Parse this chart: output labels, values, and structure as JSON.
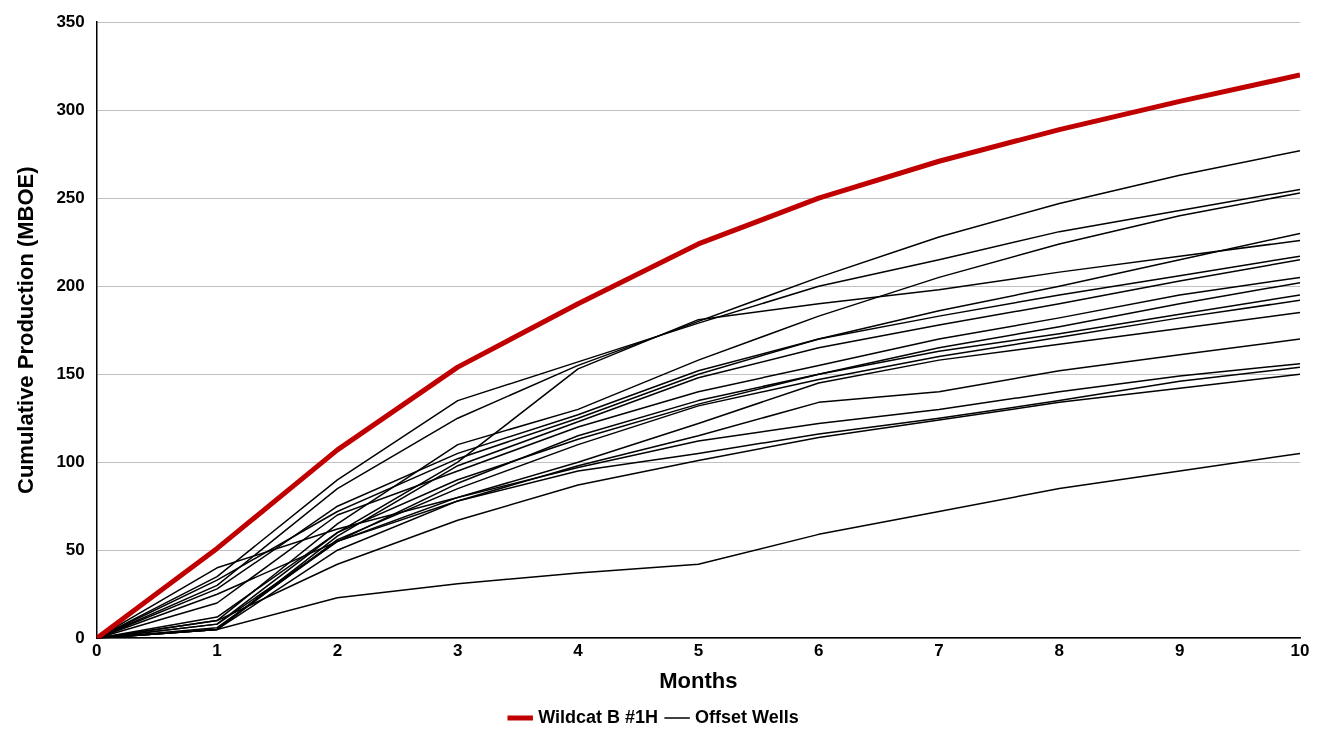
{
  "chart_data": {
    "type": "line",
    "xlabel": "Months",
    "ylabel": "Cumulative Production (MBOE)",
    "x": [
      0,
      1,
      2,
      3,
      4,
      5,
      6,
      7,
      8,
      9,
      10
    ],
    "xlim": [
      0,
      10
    ],
    "xticks": [
      0,
      1,
      2,
      3,
      4,
      5,
      6,
      7,
      8,
      9,
      10
    ],
    "ylim": [
      0,
      350
    ],
    "yticks": [
      0,
      50,
      100,
      150,
      200,
      250,
      300,
      350
    ],
    "grid": "y",
    "legend": "bottom",
    "marker": "none",
    "series": [
      {
        "name": "Wildcat B #1H",
        "color": "#c00000",
        "values": [
          0,
          51,
          107,
          154,
          190,
          224,
          250,
          271,
          289,
          305,
          320
        ]
      },
      {
        "name": "Offset Wells",
        "color": "#000000",
        "values": [
          0,
          30,
          85,
          125,
          155,
          180,
          205,
          228,
          247,
          263,
          277
        ]
      },
      {
        "color": "#000000",
        "values": [
          0,
          35,
          90,
          135,
          157,
          179,
          200,
          215,
          231,
          243,
          255
        ]
      },
      {
        "color": "#000000",
        "values": [
          0,
          10,
          65,
          110,
          130,
          158,
          183,
          205,
          224,
          240,
          253
        ]
      },
      {
        "color": "#000000",
        "values": [
          0,
          28,
          75,
          105,
          127,
          152,
          170,
          186,
          200,
          215,
          230
        ]
      },
      {
        "color": "#000000",
        "values": [
          0,
          8,
          60,
          100,
          153,
          181,
          190,
          198,
          208,
          217,
          226
        ]
      },
      {
        "color": "#000000",
        "values": [
          0,
          33,
          72,
          102,
          125,
          150,
          170,
          183,
          195,
          206,
          217
        ]
      },
      {
        "color": "#000000",
        "values": [
          0,
          5,
          58,
          98,
          123,
          148,
          165,
          178,
          190,
          203,
          215
        ]
      },
      {
        "color": "#000000",
        "values": [
          0,
          20,
          70,
          95,
          120,
          140,
          155,
          170,
          182,
          195,
          205
        ]
      },
      {
        "color": "#000000",
        "values": [
          0,
          6,
          55,
          88,
          115,
          135,
          150,
          165,
          177,
          190,
          202
        ]
      },
      {
        "color": "#000000",
        "values": [
          0,
          12,
          60,
          90,
          113,
          133,
          150,
          163,
          173,
          184,
          195
        ]
      },
      {
        "color": "#000000",
        "values": [
          0,
          5,
          56,
          85,
          110,
          132,
          147,
          160,
          171,
          182,
          192
        ]
      },
      {
        "color": "#000000",
        "values": [
          0,
          40,
          62,
          80,
          100,
          122,
          145,
          158,
          167,
          176,
          185
        ]
      },
      {
        "color": "#000000",
        "values": [
          0,
          25,
          55,
          78,
          98,
          115,
          134,
          140,
          152,
          161,
          170
        ]
      },
      {
        "color": "#000000",
        "values": [
          0,
          8,
          55,
          80,
          97,
          112,
          122,
          130,
          140,
          149,
          156
        ]
      },
      {
        "color": "#000000",
        "values": [
          0,
          5,
          50,
          78,
          95,
          105,
          116,
          125,
          135,
          146,
          154
        ]
      },
      {
        "color": "#000000",
        "values": [
          0,
          10,
          42,
          67,
          87,
          101,
          114,
          124,
          134,
          142,
          150
        ]
      },
      {
        "color": "#000000",
        "values": [
          0,
          5,
          23,
          31,
          37,
          42,
          59,
          72,
          85,
          95,
          105
        ]
      }
    ]
  }
}
